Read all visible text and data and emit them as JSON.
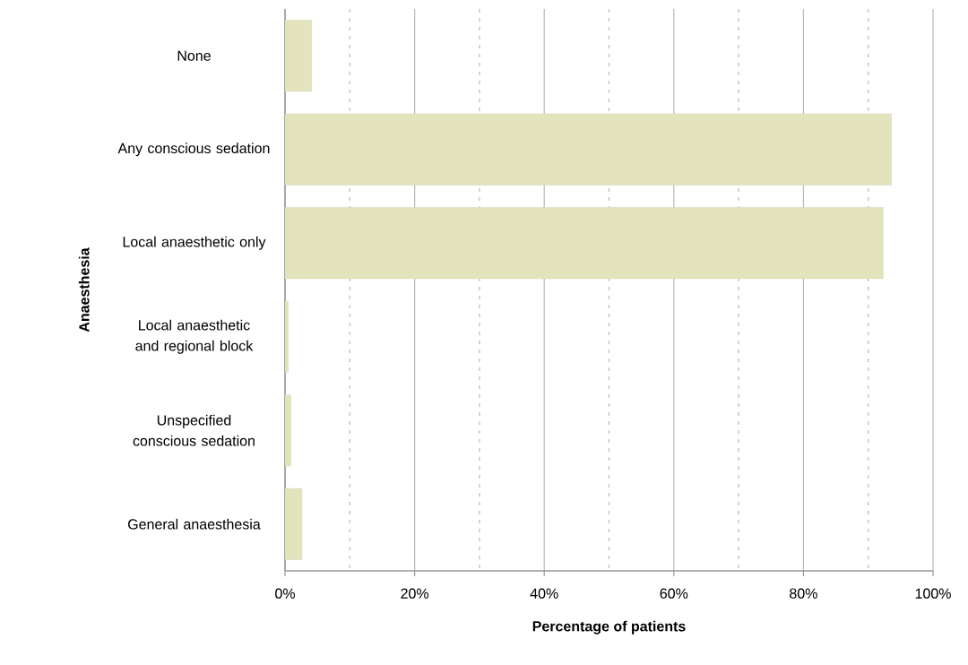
{
  "chart_data": {
    "type": "bar",
    "orientation": "horizontal",
    "xlabel": "Percentage of patients",
    "ylabel": "Anaesthesia",
    "categories": [
      "None",
      "Any conscious sedation",
      "Local anaesthetic only",
      "Local anaesthetic and regional block",
      "Unspecified conscious sedation",
      "General anaesthesia"
    ],
    "values": [
      4.1,
      93.6,
      92.3,
      0.5,
      0.9,
      2.6
    ],
    "color": "#e4e4bc",
    "xlim": [
      0,
      100
    ],
    "xticks": [
      {
        "value": 0,
        "label": "0%"
      },
      {
        "value": 10,
        "label": null
      },
      {
        "value": 20,
        "label": "20%"
      },
      {
        "value": 30,
        "label": null
      },
      {
        "value": 40,
        "label": "40%"
      },
      {
        "value": 50,
        "label": null
      },
      {
        "value": 60,
        "label": "60%"
      },
      {
        "value": 70,
        "label": null
      },
      {
        "value": 80,
        "label": "80%"
      },
      {
        "value": 90,
        "label": null
      },
      {
        "value": 100,
        "label": "100%"
      }
    ],
    "grid": "x"
  }
}
